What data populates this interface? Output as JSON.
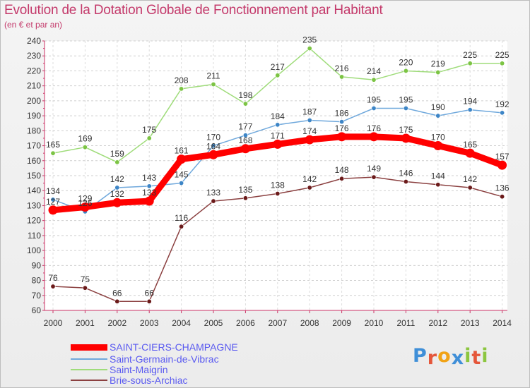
{
  "header": {
    "title": "Evolution de la Dotation Globale de Fonctionnement par Habitant",
    "subtitle": "(en € et par an)"
  },
  "logo": {
    "text": "Proxiti",
    "letters": [
      "P",
      "r",
      "o",
      "x",
      "i",
      "t",
      "i"
    ],
    "colors": [
      "#3f8fd8",
      "#e5563a",
      "#f1a316",
      "#3f8fd8",
      "#8cc63f",
      "#e5563a",
      "#8cc63f"
    ]
  },
  "chart_data": {
    "type": "line",
    "title": "Evolution de la Dotation Globale de Fonctionnement par Habitant",
    "subtitle": "(en € et par an)",
    "xlabel": "",
    "ylabel": "",
    "categories": [
      "2000",
      "2001",
      "2002",
      "2003",
      "2004",
      "2005",
      "2006",
      "2007",
      "2008",
      "2009",
      "2010",
      "2011",
      "2012",
      "2013",
      "2014"
    ],
    "ylim": [
      60,
      240
    ],
    "yticks": [
      60,
      70,
      80,
      90,
      100,
      110,
      120,
      130,
      140,
      150,
      160,
      170,
      180,
      190,
      200,
      210,
      220,
      230,
      240
    ],
    "grid": "horizontal-dashed",
    "legend": "bottom-left",
    "series": [
      {
        "name": "SAINT-CIERS-CHAMPAGNE",
        "color": "#ff0000",
        "marker_color": "#ff0000",
        "emphasis": true,
        "values": [
          127,
          129,
          132,
          133,
          161,
          164,
          168,
          171,
          174,
          176,
          176,
          175,
          170,
          165,
          157
        ],
        "labels": [
          "127",
          "129",
          "132",
          "133",
          "161",
          "164",
          "168",
          "171",
          "174",
          "176",
          "176",
          "175",
          "170",
          "165",
          "157"
        ]
      },
      {
        "name": "Saint-Germain-de-Vibrac",
        "color": "#6fa8dc",
        "marker_color": "#3d85c6",
        "emphasis": false,
        "values": [
          134,
          126,
          142,
          143,
          145,
          170,
          177,
          184,
          187,
          186,
          195,
          195,
          190,
          194,
          192
        ],
        "labels": [
          "134",
          "126",
          "142",
          "143",
          "145",
          "170",
          "177",
          "184",
          "187",
          "186",
          "195",
          "195",
          "190",
          "194",
          "192"
        ]
      },
      {
        "name": "Saint-Maigrin",
        "color": "#9fdc7a",
        "marker_color": "#7cc444",
        "emphasis": false,
        "values": [
          165,
          169,
          159,
          175,
          208,
          211,
          198,
          217,
          235,
          216,
          214,
          220,
          219,
          225,
          225
        ],
        "labels": [
          "165",
          "169",
          "159",
          "175",
          "208",
          "211",
          "198",
          "217",
          "235",
          "216",
          "214",
          "220",
          "219",
          "225",
          "225"
        ]
      },
      {
        "name": "Brie-sous-Archiac",
        "color": "#8b4040",
        "marker_color": "#6b1a1a",
        "emphasis": false,
        "values": [
          76,
          75,
          66,
          66,
          116,
          133,
          135,
          138,
          142,
          148,
          149,
          146,
          144,
          142,
          136
        ],
        "labels": [
          "76",
          "75",
          "66",
          "66",
          "116",
          "133",
          "135",
          "138",
          "142",
          "148",
          "149",
          "146",
          "144",
          "142",
          "136"
        ]
      }
    ]
  }
}
